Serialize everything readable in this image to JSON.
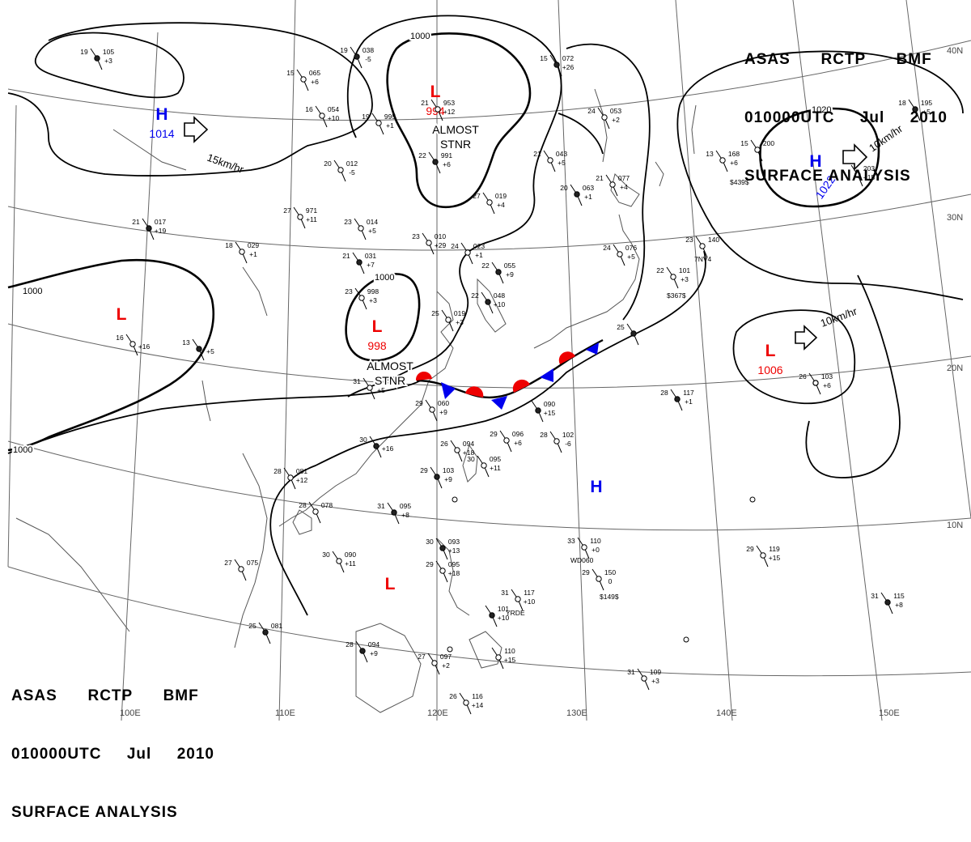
{
  "header": {
    "agency": "ASAS",
    "station": "RCTP",
    "office": "BMF",
    "time": "010000UTC",
    "month": "Jul",
    "year": "2010",
    "product": "SURFACE ANALYSIS"
  },
  "colors": {
    "high": "#0000ee",
    "low": "#ee0000",
    "warm_front": "#ee0000",
    "cold_front": "#0000ee",
    "isobar": "#000000",
    "graticule": "#666666"
  },
  "longitude_labels": [
    "100E",
    "110E",
    "120E",
    "130E",
    "140E",
    "150E"
  ],
  "latitude_labels": [
    "40N",
    "30N",
    "20N",
    "10N"
  ],
  "isobar_labels": [
    "1000",
    "1000",
    "1000",
    "1000",
    "1020"
  ],
  "pressure_centers": [
    {
      "type": "H",
      "value": "1014",
      "color": "high"
    },
    {
      "type": "H",
      "value": "1022",
      "color": "high"
    },
    {
      "type": "H",
      "value": "",
      "color": "high"
    },
    {
      "type": "L",
      "value": "994",
      "color": "low"
    },
    {
      "type": "L",
      "value": "998",
      "color": "low"
    },
    {
      "type": "L",
      "value": "1006",
      "color": "low"
    },
    {
      "type": "L",
      "value": "",
      "color": "low"
    },
    {
      "type": "L",
      "value": "",
      "color": "low"
    }
  ],
  "motions": [
    {
      "speed": "15km/hr"
    },
    {
      "speed": "10km/hr"
    },
    {
      "speed": "10km/hr"
    }
  ],
  "annotations": [
    {
      "line1": "ALMOST",
      "line2": "STNR"
    },
    {
      "line1": "ALMOST",
      "line2": "STNR"
    }
  ],
  "station_plots": [
    {
      "temp": "19",
      "pres": "105",
      "tend": "+3"
    },
    {
      "temp": "15",
      "pres": "065",
      "tend": "+6"
    },
    {
      "temp": "16",
      "pres": "054",
      "tend": "+10"
    },
    {
      "temp": "19",
      "pres": "038",
      "tend": "-5"
    },
    {
      "temp": "19",
      "pres": "995",
      "tend": "+1"
    },
    {
      "temp": "21",
      "pres": "953",
      "tend": "+12"
    },
    {
      "temp": "22",
      "pres": "991",
      "tend": "+6"
    },
    {
      "temp": "20",
      "pres": "012",
      "tend": "-5"
    },
    {
      "temp": "27",
      "pres": "019",
      "tend": "+4"
    },
    {
      "temp": "15",
      "pres": "072",
      "tend": "+26"
    },
    {
      "temp": "21",
      "pres": "043",
      "tend": "+5"
    },
    {
      "temp": "24",
      "pres": "053",
      "tend": "+2"
    },
    {
      "temp": "20",
      "pres": "063",
      "tend": "+1"
    },
    {
      "temp": "21",
      "pres": "077",
      "tend": "+4"
    },
    {
      "temp": "27",
      "pres": "971",
      "tend": "+11"
    },
    {
      "temp": "21",
      "pres": "017",
      "tend": "+19"
    },
    {
      "temp": "23",
      "pres": "014",
      "tend": "+5"
    },
    {
      "temp": "18",
      "pres": "029",
      "tend": "+1"
    },
    {
      "temp": "21",
      "pres": "031",
      "tend": "+7"
    },
    {
      "temp": "23",
      "pres": "010",
      "tend": "+29"
    },
    {
      "temp": "24",
      "pres": "023",
      "tend": "+1"
    },
    {
      "temp": "22",
      "pres": "055",
      "tend": "+9"
    },
    {
      "temp": "24",
      "pres": "076",
      "tend": "+5"
    },
    {
      "temp": "23",
      "pres": "998",
      "tend": "+3"
    },
    {
      "temp": "22",
      "pres": "048",
      "tend": "+10"
    },
    {
      "temp": "25",
      "pres": "019",
      "tend": "+3"
    },
    {
      "temp": "16",
      "pres": "",
      "tend": "+16"
    },
    {
      "temp": "13",
      "pres": "",
      "tend": "+5"
    },
    {
      "temp": "31",
      "pres": "",
      "tend": "+5"
    },
    {
      "temp": "29",
      "pres": "060",
      "tend": "+9"
    },
    {
      "temp": "",
      "pres": "090",
      "tend": "+15"
    },
    {
      "temp": "28",
      "pres": "102",
      "tend": "-6"
    },
    {
      "temp": "29",
      "pres": "096",
      "tend": "+6"
    },
    {
      "temp": "30",
      "pres": "",
      "tend": "+16"
    },
    {
      "temp": "26",
      "pres": "094",
      "tend": "+18"
    },
    {
      "temp": "30",
      "pres": "095",
      "tend": "+11"
    },
    {
      "temp": "29",
      "pres": "103",
      "tend": "+9"
    },
    {
      "temp": "28",
      "pres": "081",
      "tend": "+12"
    },
    {
      "temp": "28",
      "pres": "078",
      "tend": ""
    },
    {
      "temp": "31",
      "pres": "095",
      "tend": "+8"
    },
    {
      "temp": "27",
      "pres": "075",
      "tend": ""
    },
    {
      "temp": "30",
      "pres": "090",
      "tend": "+11"
    },
    {
      "temp": "30",
      "pres": "093",
      "tend": "+13"
    },
    {
      "temp": "29",
      "pres": "095",
      "tend": "+18"
    },
    {
      "temp": "31",
      "pres": "117",
      "tend": "+10"
    },
    {
      "temp": "",
      "pres": "101",
      "tend": "+10"
    },
    {
      "temp": "33",
      "pres": "110",
      "tend": "+0"
    },
    {
      "temp": "29",
      "pres": "150",
      "tend": "0"
    },
    {
      "temp": "28",
      "pres": "094",
      "tend": "+9"
    },
    {
      "temp": "27",
      "pres": "097",
      "tend": "+2"
    },
    {
      "temp": "",
      "pres": "110",
      "tend": "+15"
    },
    {
      "temp": "25",
      "pres": "081",
      "tend": ""
    },
    {
      "temp": "26",
      "pres": "116",
      "tend": "+14"
    },
    {
      "temp": "31",
      "pres": "109",
      "tend": "+3"
    },
    {
      "temp": "31",
      "pres": "115",
      "tend": "+8"
    },
    {
      "temp": "29",
      "pres": "119",
      "tend": "+15"
    },
    {
      "temp": "26",
      "pres": "103",
      "tend": "+6"
    },
    {
      "temp": "28",
      "pres": "117",
      "tend": "+1"
    },
    {
      "temp": "23",
      "pres": "140",
      "tend": ""
    },
    {
      "temp": "22",
      "pres": "101",
      "tend": "+3"
    },
    {
      "temp": "25",
      "pres": "",
      "tend": ""
    },
    {
      "temp": "13",
      "pres": "168",
      "tend": "+6"
    },
    {
      "temp": "15",
      "pres": "200",
      "tend": ""
    },
    {
      "temp": "18",
      "pres": "195",
      "tend": "+5"
    },
    {
      "temp": "",
      "pres": "203",
      "tend": "+15"
    }
  ],
  "misc_labels": [
    "$439$",
    "$367$",
    "$149$",
    "7NV4",
    "WD060",
    "YRDE"
  ]
}
